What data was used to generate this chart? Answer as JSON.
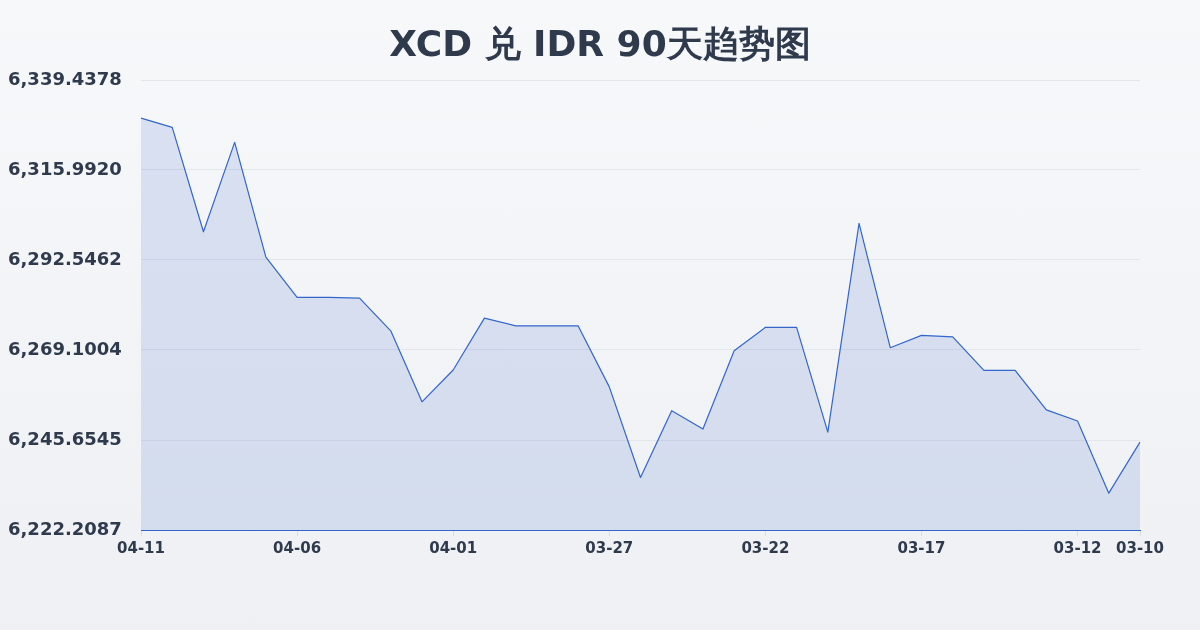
{
  "chart_data": {
    "type": "area",
    "title": "XCD 兑 IDR 90天趋势图",
    "categories": [
      "04-11",
      null,
      null,
      null,
      null,
      "04-06",
      null,
      null,
      null,
      null,
      "04-01",
      null,
      null,
      null,
      null,
      "03-27",
      null,
      null,
      null,
      null,
      "03-22",
      null,
      null,
      null,
      null,
      "03-17",
      null,
      null,
      null,
      null,
      "03-12",
      null,
      "03-10"
    ],
    "values": [
      6329.5,
      6327.1,
      6299.9,
      6323.2,
      6293.3,
      6282.8,
      6282.8,
      6282.6,
      6274.1,
      6255.6,
      6263.9,
      6277.4,
      6275.4,
      6275.4,
      6275.4,
      6259.5,
      6235.9,
      6253.3,
      6248.5,
      6268.9,
      6275.0,
      6275.0,
      6247.7,
      6302.1,
      6269.7,
      6272.9,
      6272.5,
      6263.8,
      6263.8,
      6253.5,
      6250.6,
      6231.8,
      6245.1
    ],
    "color": "#3366cc",
    "ylim": [
      6222.2087,
      6339.4378
    ],
    "yticks": [
      {
        "value": 6222.2087,
        "label": "6,222.2087"
      },
      {
        "value": 6245.6545,
        "label": "6,245.6545"
      },
      {
        "value": 6269.1004,
        "label": "6,269.1004"
      },
      {
        "value": 6292.5462,
        "label": "6,292.5462"
      },
      {
        "value": 6315.992,
        "label": "6,315.9920"
      },
      {
        "value": 6339.4378,
        "label": "6,339.4378"
      }
    ],
    "grid": "y"
  }
}
